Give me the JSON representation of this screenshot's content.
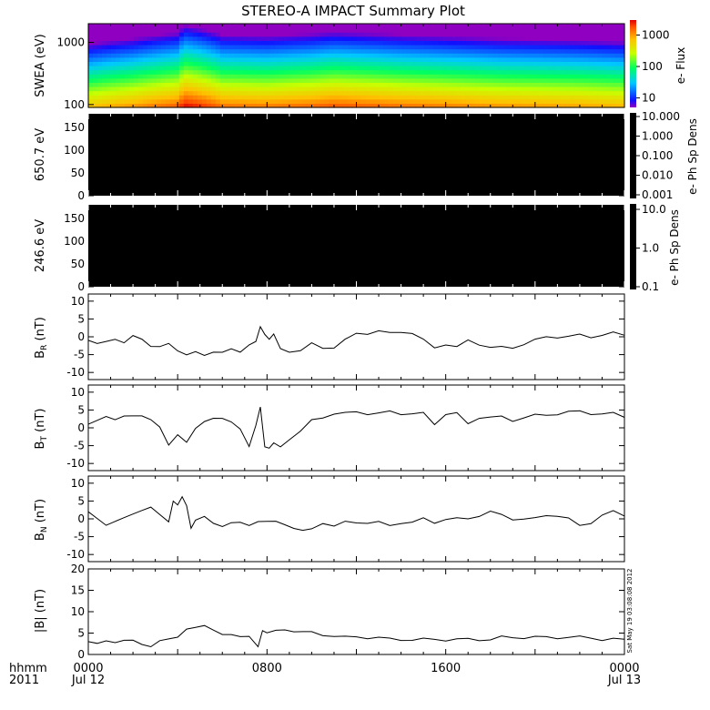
{
  "title": "STEREO-A IMPACT Summary Plot",
  "stamp": "Sat May 19 03:08:08 2012",
  "time_axis": {
    "row1_label": "hhmm",
    "row2_label": "2011",
    "ticks": [
      {
        "t": 0,
        "top": "0000",
        "bottom": "Jul 12"
      },
      {
        "t": 8,
        "top": "0800",
        "bottom": ""
      },
      {
        "t": 16,
        "top": "1600",
        "bottom": ""
      },
      {
        "t": 24,
        "top": "0000",
        "bottom": "Jul 13"
      }
    ],
    "range_hours": [
      0,
      24
    ]
  },
  "colors": {
    "line": "#000000",
    "background": "#ffffff",
    "empty_panel": "#000000"
  },
  "panels": {
    "swea": {
      "ylabel": "SWEA (eV)",
      "yticks": [
        "1000",
        "100"
      ],
      "cb_label": "e- Flux",
      "cb_ticks": [
        "1000",
        "100",
        "10"
      ]
    },
    "pad1": {
      "ylabel": "650.7 eV",
      "yticks": [
        "150",
        "100",
        "50",
        "0"
      ],
      "cb_label": "e- Ph Sp Dens",
      "cb_ticks": [
        "10.000",
        "1.000",
        "0.100",
        "0.010",
        "0.001"
      ]
    },
    "pad2": {
      "ylabel": "246.6 eV",
      "yticks": [
        "150",
        "100",
        "50",
        "0"
      ],
      "cb_label": "e- Ph Sp Dens",
      "cb_ticks": [
        "10.0",
        "1.0",
        "0.1"
      ]
    },
    "br": {
      "ylabel_main": "B",
      "ylabel_sub": "R",
      "ylabel_unit": " (nT)",
      "yticks": [
        "10",
        "5",
        "0",
        "-5",
        "-10"
      ]
    },
    "bt": {
      "ylabel_main": "B",
      "ylabel_sub": "T",
      "ylabel_unit": " (nT)",
      "yticks": [
        "10",
        "5",
        "0",
        "-5",
        "-10"
      ]
    },
    "bn": {
      "ylabel_main": "B",
      "ylabel_sub": "N",
      "ylabel_unit": " (nT)",
      "yticks": [
        "10",
        "5",
        "0",
        "-5",
        "-10"
      ]
    },
    "bmag": {
      "ylabel": "|B| (nT)",
      "yticks": [
        "20",
        "15",
        "10",
        "5",
        "0"
      ]
    }
  },
  "chart_data": [
    {
      "type": "heatmap",
      "name": "swea",
      "ylabel": "SWEA (eV)",
      "ylim": [
        90,
        2000
      ],
      "yscale": "log",
      "colorbar_label": "e- Flux",
      "colorbar_range": [
        5,
        3000
      ],
      "colorbar_scale": "log",
      "colormap": "rainbow",
      "description_values": {
        "x": [
          0,
          2,
          4,
          4.3,
          6,
          8,
          10,
          11,
          14,
          18.5,
          22,
          24
        ],
        "flux_low_energy": [
          600,
          900,
          1400,
          2500,
          1200,
          1100,
          1300,
          1500,
          1200,
          900,
          800,
          700
        ]
      }
    },
    {
      "type": "heatmap",
      "name": "pad-650.7",
      "ylabel": "650.7 eV",
      "ylim": [
        0,
        180
      ],
      "colorbar_label": "e- Ph Sp Dens",
      "colorbar_range": [
        0.001,
        10.0
      ],
      "colorbar_scale": "log",
      "note": "no data (black)"
    },
    {
      "type": "heatmap",
      "name": "pad-246.6",
      "ylabel": "246.6 eV",
      "ylim": [
        0,
        180
      ],
      "colorbar_label": "e- Ph Sp Dens",
      "colorbar_range": [
        0.1,
        10.0
      ],
      "colorbar_scale": "log",
      "note": "no data (black)"
    },
    {
      "type": "line",
      "name": "br",
      "ylabel": "B_R (nT)",
      "ylim": [
        -12,
        12
      ],
      "x": [
        0,
        0.4,
        0.8,
        1.2,
        1.6,
        2.0,
        2.4,
        2.8,
        3.2,
        3.6,
        4.0,
        4.4,
        4.8,
        5.2,
        5.6,
        6.0,
        6.4,
        6.8,
        7.2,
        7.5,
        7.7,
        7.9,
        8.1,
        8.3,
        8.6,
        9.0,
        9.5,
        10.0,
        10.5,
        11.0,
        11.5,
        12.0,
        12.5,
        13.0,
        13.5,
        14.0,
        14.5,
        15.0,
        15.5,
        16.0,
        16.5,
        17.0,
        17.5,
        18.0,
        18.5,
        19.0,
        19.5,
        20.0,
        20.5,
        21.0,
        21.5,
        22.0,
        22.5,
        23.0,
        23.5,
        24.0
      ],
      "y": [
        -1,
        -2,
        -1.5,
        -1,
        -2,
        0,
        -1,
        -3,
        -3,
        -2,
        -4,
        -5,
        -4,
        -5,
        -4,
        -4,
        -3,
        -4,
        -2,
        -1,
        2.5,
        1,
        -1,
        1,
        -3,
        -4,
        -4,
        -2,
        -3,
        -3,
        -1,
        1,
        1,
        1.5,
        1,
        1.5,
        1,
        -1,
        -3,
        -2,
        -3,
        -1,
        -2,
        -3,
        -3,
        -3,
        -2,
        -1,
        0,
        0,
        0,
        0.5,
        0,
        0.5,
        1,
        0.5
      ]
    },
    {
      "type": "line",
      "name": "bt",
      "ylabel": "B_T (nT)",
      "ylim": [
        -12,
        12
      ],
      "x": [
        0,
        0.4,
        0.8,
        1.2,
        1.6,
        2.0,
        2.4,
        2.8,
        3.2,
        3.6,
        4.0,
        4.4,
        4.8,
        5.2,
        5.6,
        6.0,
        6.4,
        6.8,
        7.2,
        7.5,
        7.7,
        7.9,
        8.1,
        8.3,
        8.6,
        9.0,
        9.5,
        10.0,
        10.5,
        11.0,
        11.5,
        12.0,
        12.5,
        13.0,
        13.5,
        14.0,
        14.5,
        15.0,
        15.5,
        16.0,
        16.5,
        17.0,
        17.5,
        18.0,
        18.5,
        19.0,
        19.5,
        20.0,
        20.5,
        21.0,
        21.5,
        22.0,
        22.5,
        23.0,
        23.5,
        24.0
      ],
      "y": [
        1,
        2,
        3,
        2,
        3,
        3,
        3,
        2,
        0,
        -5,
        -2,
        -4,
        0,
        2,
        3,
        3,
        2,
        0,
        -5,
        1,
        5.5,
        -5,
        -6,
        -4,
        -5,
        -3,
        -1,
        2,
        3,
        4,
        4,
        4.5,
        4,
        4,
        4.5,
        4,
        4,
        4,
        1,
        4,
        4,
        1,
        3,
        3,
        3,
        2,
        3,
        3.5,
        3.5,
        4,
        4.5,
        4.5,
        4,
        4,
        4,
        3
      ]
    },
    {
      "type": "line",
      "name": "bn",
      "ylabel": "B_N (nT)",
      "ylim": [
        -12,
        12
      ],
      "x": [
        0,
        0.4,
        0.8,
        1.2,
        1.6,
        2.0,
        2.4,
        2.8,
        3.2,
        3.6,
        3.8,
        4.0,
        4.2,
        4.4,
        4.6,
        4.8,
        5.2,
        5.6,
        6.0,
        6.4,
        6.8,
        7.2,
        7.6,
        8.0,
        8.4,
        8.8,
        9.2,
        9.6,
        10.0,
        10.5,
        11.0,
        11.5,
        12.0,
        12.5,
        13.0,
        13.5,
        14.0,
        14.5,
        15.0,
        15.5,
        16.0,
        16.5,
        17.0,
        17.5,
        18.0,
        18.5,
        19.0,
        19.5,
        20.0,
        20.5,
        21.0,
        21.5,
        22.0,
        22.5,
        23.0,
        23.5,
        24.0
      ],
      "y": [
        2,
        0,
        -2,
        -1,
        0,
        1,
        2,
        3,
        1,
        -1,
        5,
        4,
        6,
        4,
        -3,
        0,
        1,
        -1,
        -2,
        -1,
        -1,
        -2,
        -1,
        -1,
        -1,
        -2,
        -3,
        -3.5,
        -3,
        -1,
        -2,
        -1,
        -1,
        -1,
        -1,
        -2,
        -1,
        -1,
        0,
        -1,
        0,
        0,
        0,
        1,
        2,
        1,
        0,
        0,
        0,
        1,
        1,
        0,
        -2,
        -1,
        1,
        2,
        1
      ]
    },
    {
      "type": "line",
      "name": "bmag",
      "ylabel": "|B| (nT)",
      "ylim": [
        0,
        20
      ],
      "x": [
        0,
        0.4,
        0.8,
        1.2,
        1.6,
        2.0,
        2.4,
        2.8,
        3.2,
        3.6,
        4.0,
        4.4,
        4.8,
        5.2,
        5.6,
        6.0,
        6.4,
        6.8,
        7.2,
        7.6,
        7.8,
        8.0,
        8.4,
        8.8,
        9.2,
        9.6,
        10.0,
        10.5,
        11.0,
        11.5,
        12.0,
        12.5,
        13.0,
        13.5,
        14.0,
        14.5,
        15.0,
        15.5,
        16.0,
        16.5,
        17.0,
        17.5,
        18.0,
        18.5,
        19.0,
        19.5,
        20.0,
        20.5,
        21.0,
        21.5,
        22.0,
        22.5,
        23.0,
        23.5,
        24.0
      ],
      "y": [
        3,
        2.5,
        3,
        2.5,
        3,
        3,
        2,
        1.5,
        3,
        3.5,
        4,
        6,
        6.5,
        7,
        6,
        5,
        5,
        4.5,
        4.5,
        2,
        5.5,
        5,
        5.5,
        5.5,
        5,
        5,
        5,
        4.5,
        4.5,
        4,
        4,
        4,
        4,
        3.5,
        3.5,
        3.5,
        3.5,
        3.5,
        3.5,
        3.5,
        3.5,
        3.5,
        3.5,
        4,
        4,
        4,
        4,
        4,
        4,
        4,
        4,
        4,
        3.5,
        3.5,
        3.5
      ]
    }
  ]
}
